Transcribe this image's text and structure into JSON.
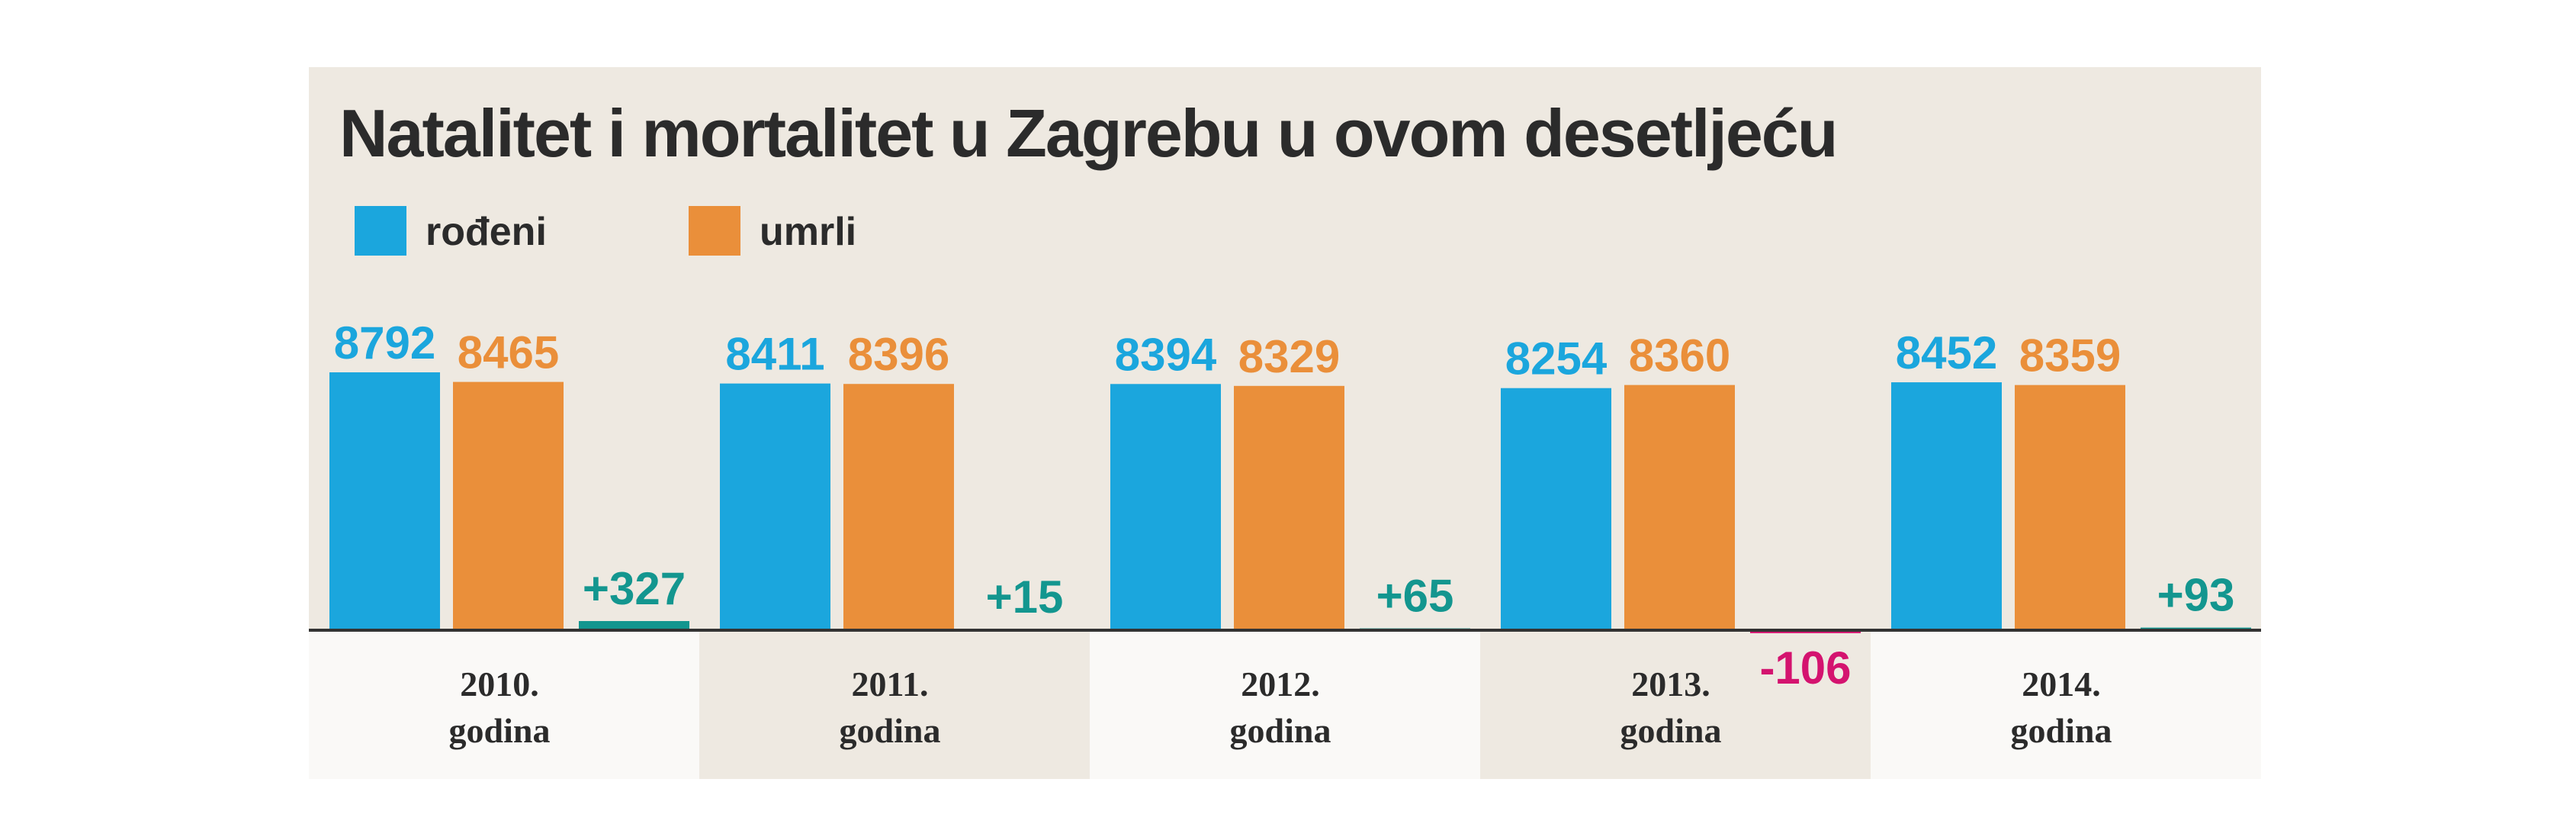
{
  "chart_data": {
    "type": "bar",
    "title": "Natalitet i mortalitet u Zagrebu u ovom desetljeću",
    "categories": [
      {
        "year": "2010.",
        "word": "godina"
      },
      {
        "year": "2011.",
        "word": "godina"
      },
      {
        "year": "2012.",
        "word": "godina"
      },
      {
        "year": "2013.",
        "word": "godina"
      },
      {
        "year": "2014.",
        "word": "godina"
      }
    ],
    "series": [
      {
        "name": "rođeni",
        "color": "#1ba6dd",
        "values": [
          8792,
          8411,
          8394,
          8254,
          8452
        ]
      },
      {
        "name": "umrli",
        "color": "#ea8f3a",
        "values": [
          8465,
          8396,
          8329,
          8360,
          8359
        ]
      }
    ],
    "difference": {
      "values": [
        327,
        15,
        65,
        -106,
        93
      ],
      "labels": [
        "+327",
        "+15",
        "+65",
        "-106",
        "+93"
      ],
      "positive_color": "#13968f",
      "negative_color": "#d4136f"
    },
    "colors": {
      "panel_background": "#eee9e1",
      "light_band": "#faf9f7",
      "axis": "#333333"
    }
  }
}
